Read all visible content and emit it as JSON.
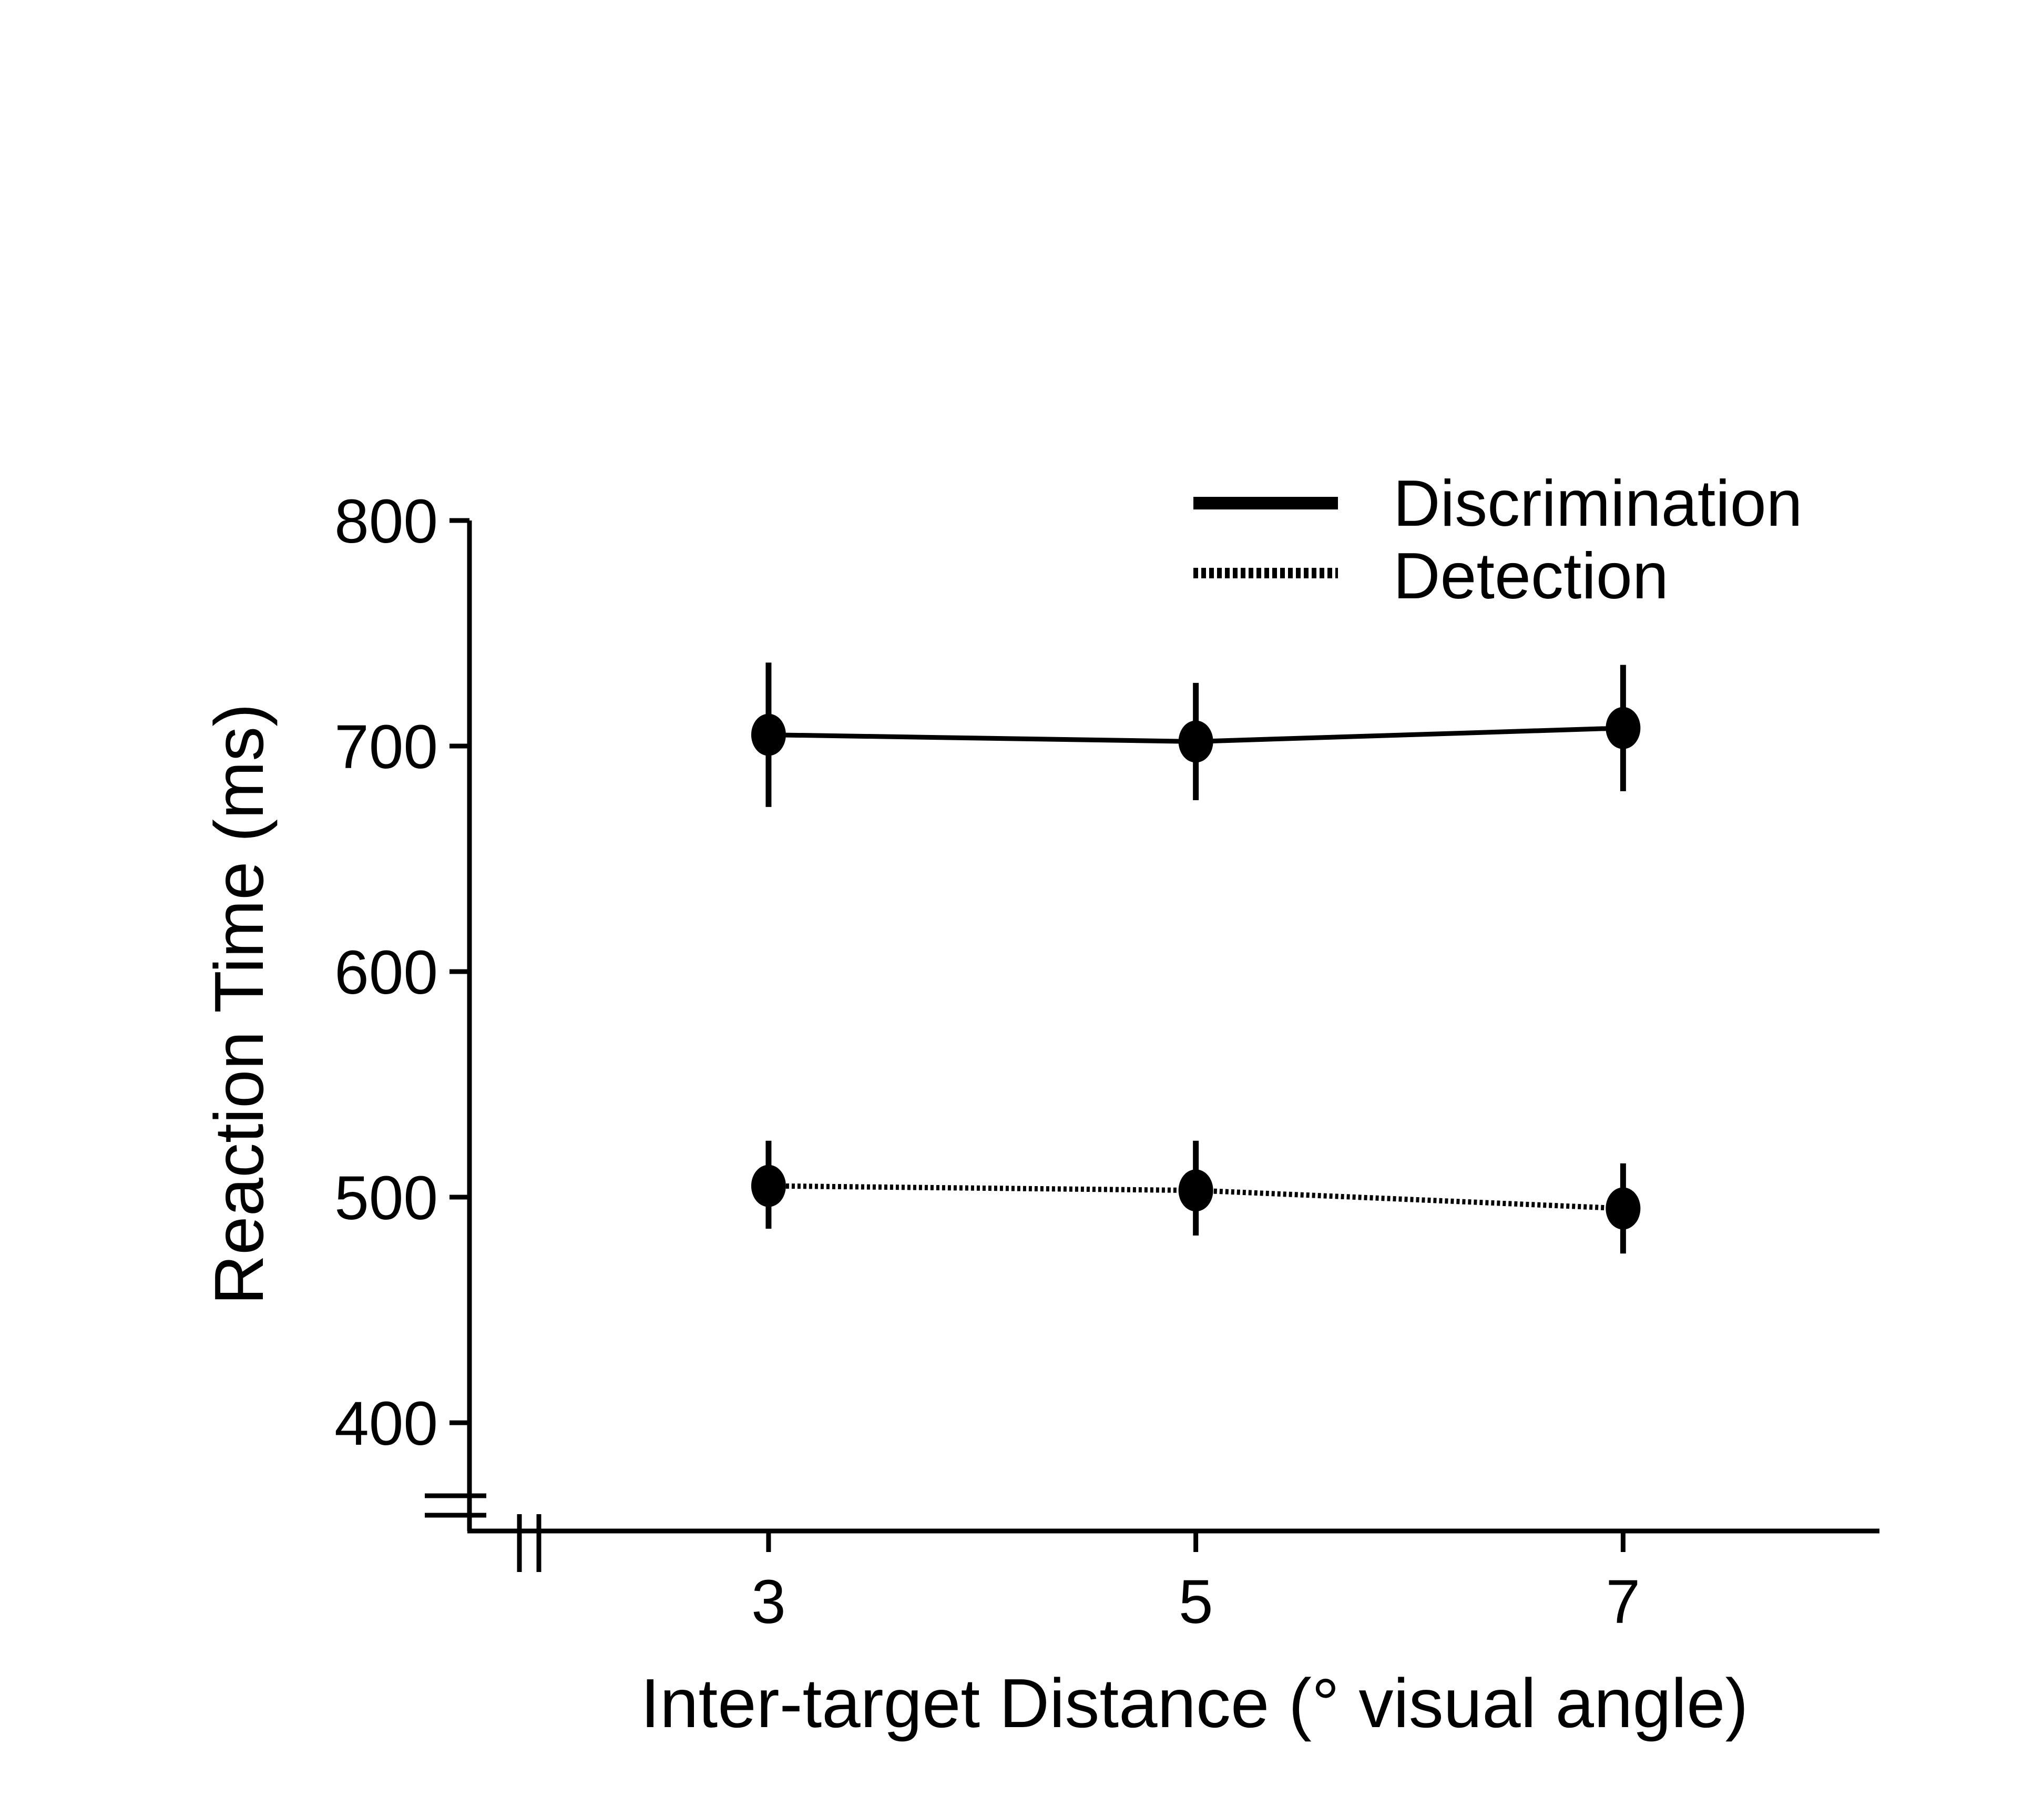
{
  "chart_data": {
    "type": "line",
    "title": "",
    "xlabel": "Inter-target Distance (° visual angle)",
    "ylabel": "Reaction Time (ms)",
    "x": [
      3,
      5,
      7
    ],
    "x_tick_labels": [
      "3",
      "5",
      "7"
    ],
    "y_ticks": [
      400,
      500,
      600,
      700,
      800
    ],
    "y_tick_labels": [
      "400",
      "500",
      "600",
      "700",
      "800"
    ],
    "xlim": [
      1.6,
      8.2
    ],
    "ylim": [
      352,
      800
    ],
    "axis_breaks": {
      "x": true,
      "y": true
    },
    "grid": false,
    "legend_position": "top-right",
    "series": [
      {
        "name": "Discrimination",
        "line_style": "solid",
        "values": [
          705,
          702,
          708
        ],
        "error": [
          [
            673,
            737
          ],
          [
            676,
            728
          ],
          [
            680,
            736
          ]
        ]
      },
      {
        "name": "Detection",
        "line_style": "dotted",
        "values": [
          505,
          503,
          495
        ],
        "error": [
          [
            486,
            525
          ],
          [
            483,
            525
          ],
          [
            475,
            515
          ]
        ]
      }
    ],
    "colors": {
      "line": "#000000",
      "marker": "#000000",
      "background": "#ffffff"
    }
  }
}
